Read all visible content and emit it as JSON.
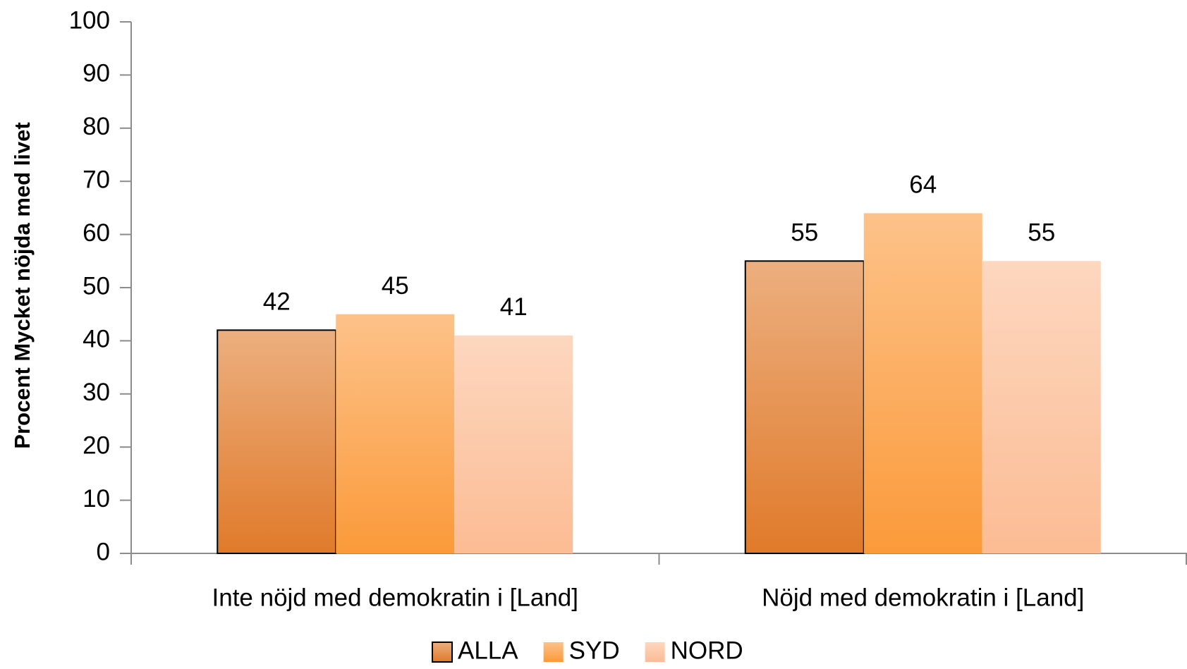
{
  "chart_data": {
    "type": "bar",
    "ylabel": "Procent Mycket nöjda med livet",
    "categories": [
      "Inte nöjd med demokratin i [Land]",
      "Nöjd med demokratin i [Land]"
    ],
    "series": [
      {
        "name": "ALLA",
        "color": "#e07a2a",
        "edgecolor": "#000000",
        "values": [
          42,
          55
        ]
      },
      {
        "name": "SYD",
        "color": "#fb9a3a",
        "values": [
          45,
          64
        ]
      },
      {
        "name": "NORD",
        "color": "#fcbc94",
        "values": [
          41,
          55
        ]
      }
    ],
    "ylim": [
      0,
      100
    ],
    "yticks": [
      0,
      10,
      20,
      30,
      40,
      50,
      60,
      70,
      80,
      90,
      100
    ],
    "legend": "bottom"
  }
}
